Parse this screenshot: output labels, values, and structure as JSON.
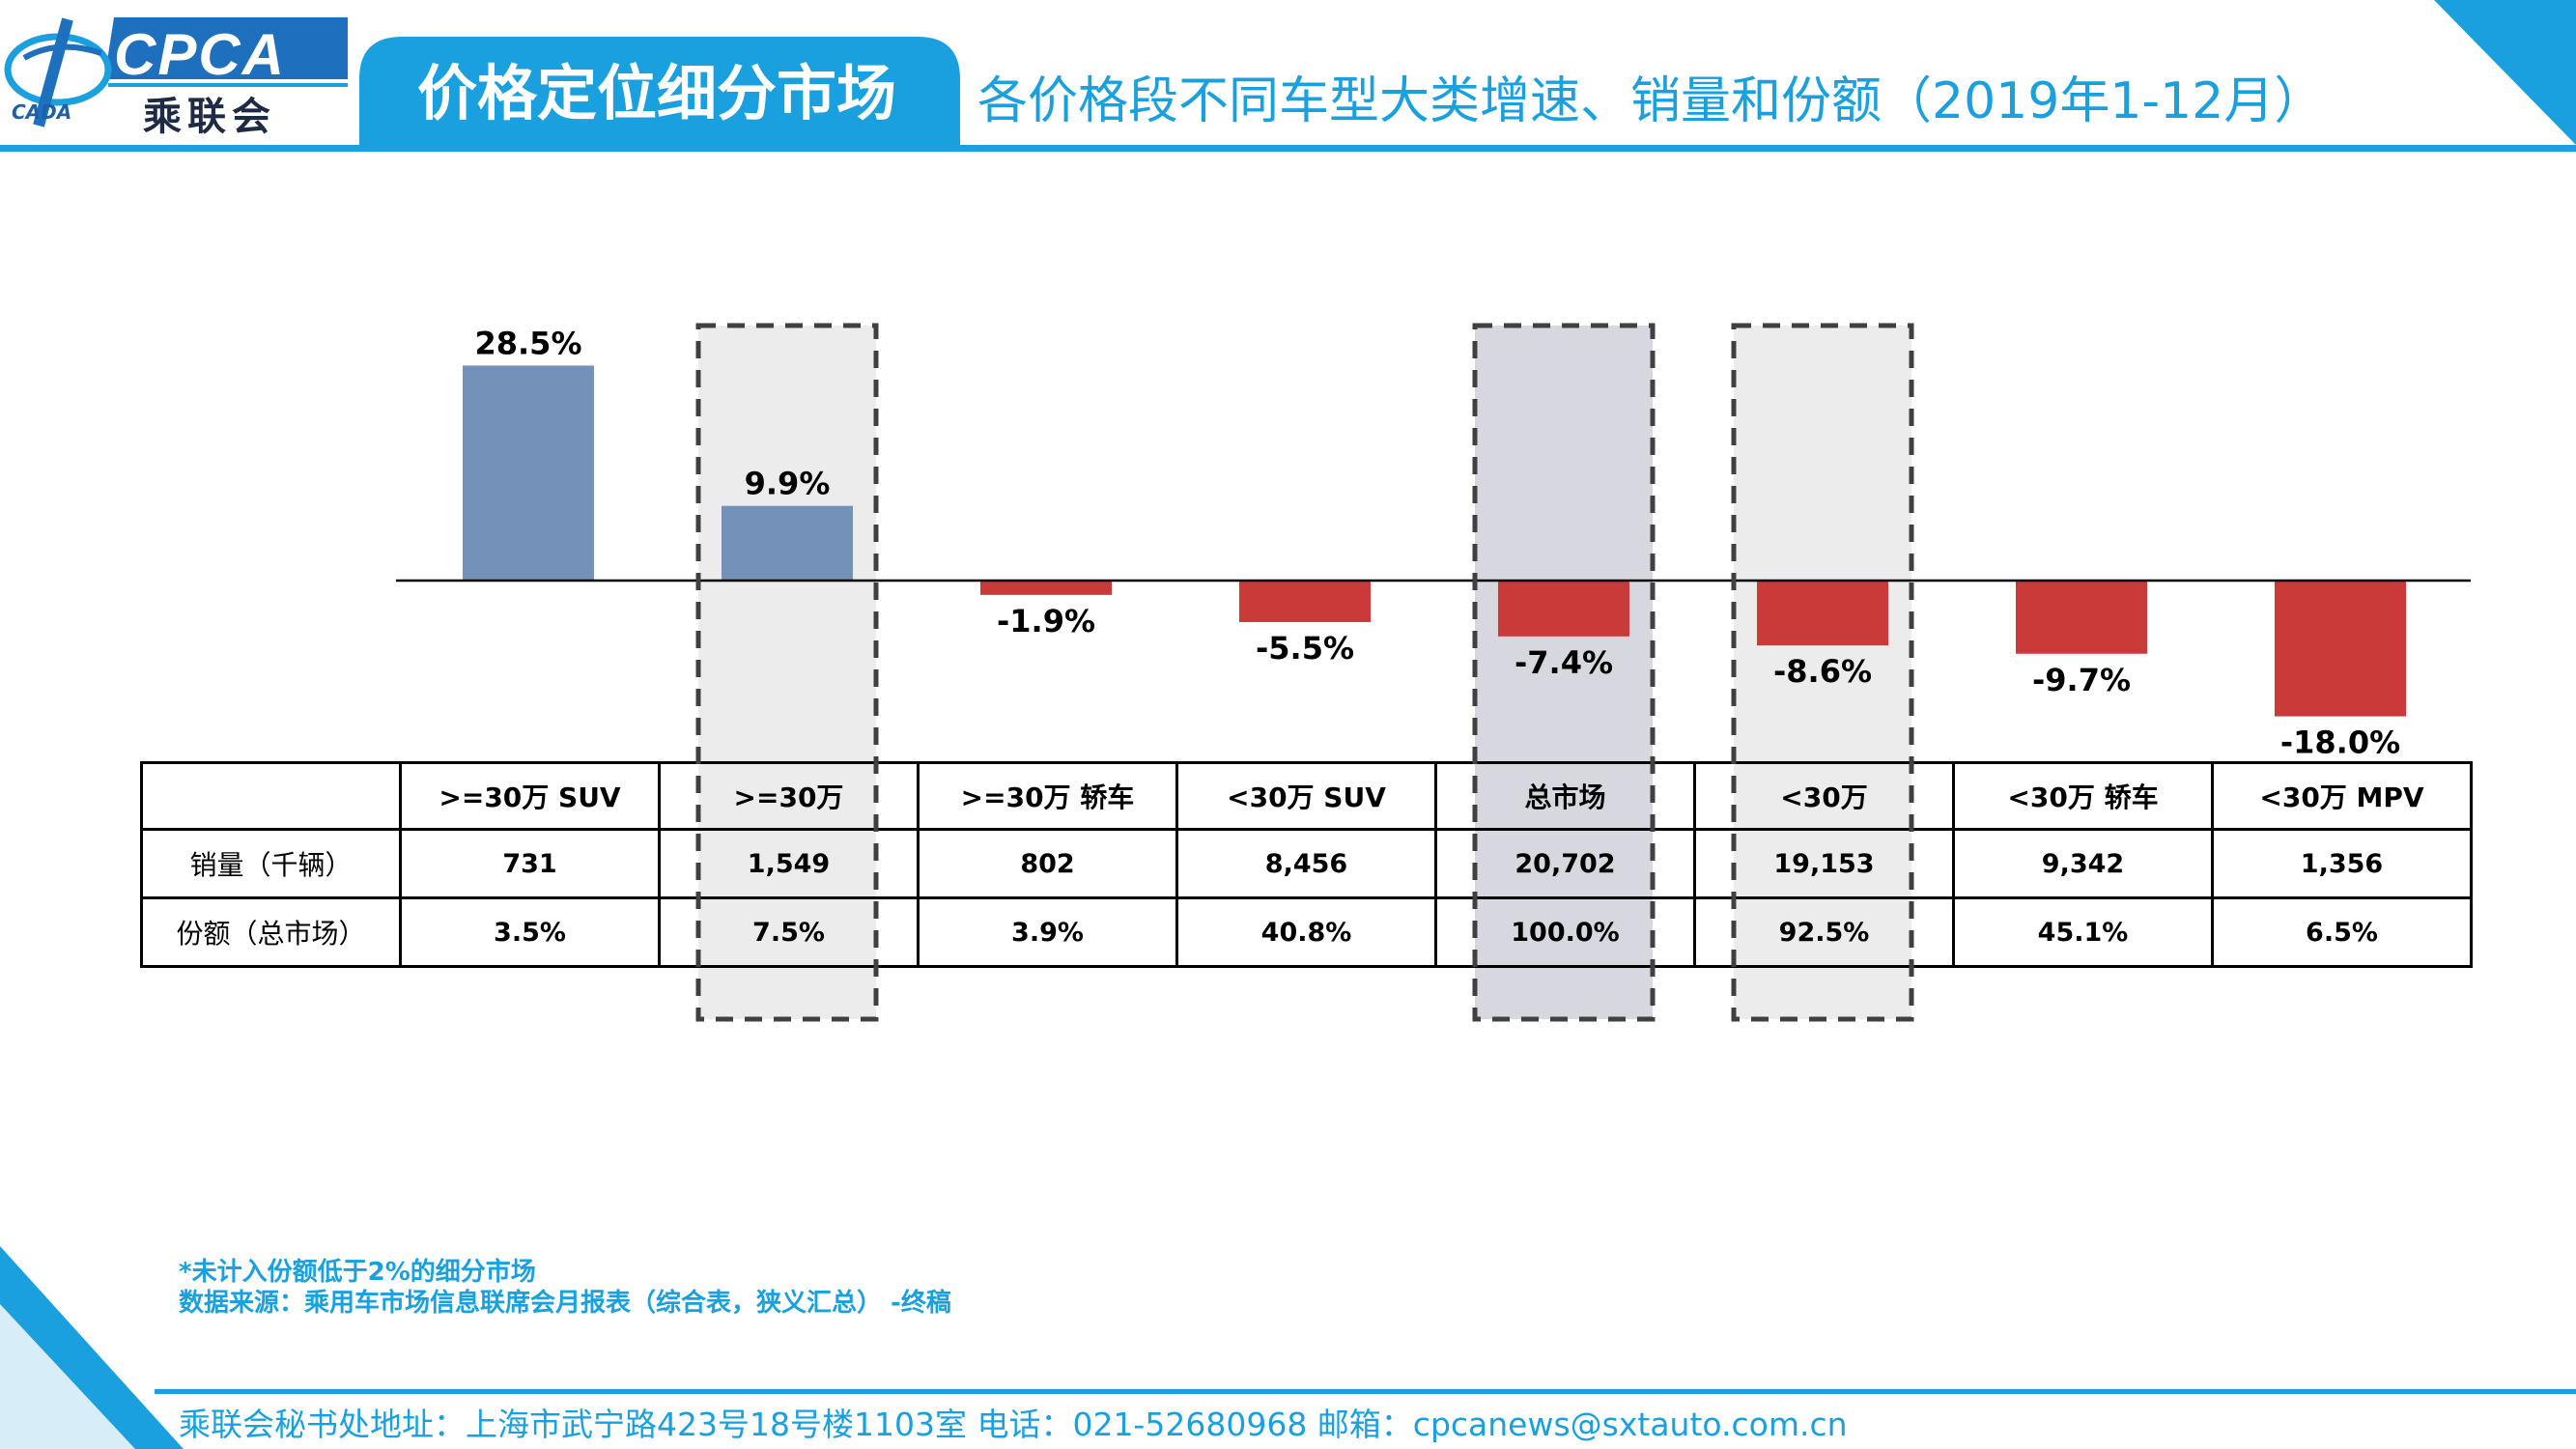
{
  "header": {
    "logo_text": "CPCA",
    "logo_cn": "乘联会",
    "logo_sub": "CADA",
    "section_title": "价格定位细分市场",
    "subtitle": "各价格段不同车型大类增速、销量和份额（2019年1-12月）",
    "accent_color": "#1aa0de"
  },
  "chart_data": {
    "type": "bar",
    "categories": [
      ">=30万 SUV",
      ">=30万",
      ">=30万 轿车",
      "<30万 SUV",
      "总市场",
      "<30万",
      "<30万 轿车",
      "<30万 MPV"
    ],
    "values": [
      28.5,
      9.9,
      -1.9,
      -5.5,
      -7.4,
      -8.6,
      -9.7,
      -18.0
    ],
    "value_labels": [
      "28.5%",
      "9.9%",
      "-1.9%",
      "-5.5%",
      "-7.4%",
      "-8.6%",
      "-9.7%",
      "-18.0%"
    ],
    "unit": "%",
    "colors": {
      "positive": "#7391b9",
      "negative": "#c93a39"
    },
    "highlighted_categories": [
      ">=30万",
      "总市场",
      "<30万"
    ],
    "title": "",
    "xlabel": "",
    "ylabel": ""
  },
  "table": {
    "headers": [
      "",
      ">=30万 SUV",
      ">=30万",
      ">=30万 轿车",
      "<30万 SUV",
      "总市场",
      "<30万",
      "<30万 轿车",
      "<30万 MPV"
    ],
    "rows": [
      {
        "label": "销量（千辆）",
        "cells": [
          "731",
          "1,549",
          "802",
          "8,456",
          "20,702",
          "19,153",
          "9,342",
          "1,356"
        ]
      },
      {
        "label": "份额（总市场）",
        "cells": [
          "3.5%",
          "7.5%",
          "3.9%",
          "40.8%",
          "100.0%",
          "92.5%",
          "45.1%",
          "6.5%"
        ]
      }
    ]
  },
  "notes": {
    "footnote": "*未计入份额低于2%的细分市场",
    "source": "数据来源：乘用车市场信息联席会月报表（综合表，狭义汇总） -终稿"
  },
  "footer": {
    "text": "乘联会秘书处地址：上海市武宁路423号18号楼1103室  电话：021-52680968  邮箱：cpcanews@sxtauto.com.cn"
  }
}
